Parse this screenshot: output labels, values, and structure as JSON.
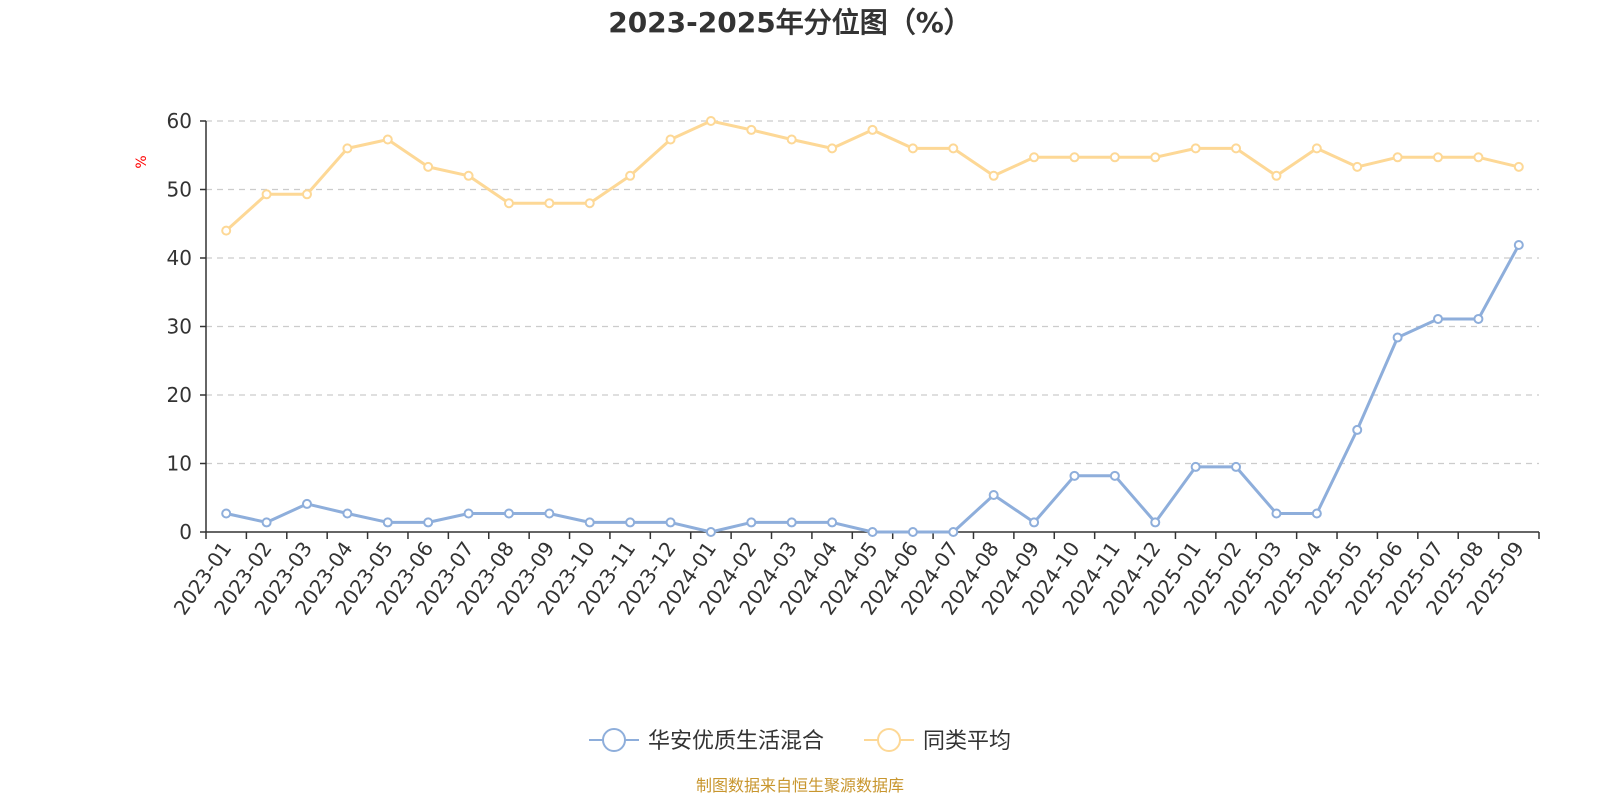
{
  "chart_data": {
    "type": "line",
    "title": "2023-2025年分位图（%）",
    "y_unit": "%",
    "ylim": [
      0,
      60
    ],
    "y_ticks": [
      0,
      10,
      20,
      30,
      40,
      50,
      60
    ],
    "grid": "horizontal dashed",
    "legend_position": "bottom",
    "categories": [
      "2023-01",
      "2023-02",
      "2023-03",
      "2023-04",
      "2023-05",
      "2023-06",
      "2023-07",
      "2023-08",
      "2023-09",
      "2023-10",
      "2023-11",
      "2023-12",
      "2024-01",
      "2024-02",
      "2024-03",
      "2024-04",
      "2024-05",
      "2024-06",
      "2024-07",
      "2024-08",
      "2024-09",
      "2024-10",
      "2024-11",
      "2024-12",
      "2025-01",
      "2025-02",
      "2025-03",
      "2025-04",
      "2025-05",
      "2025-06",
      "2025-07",
      "2025-08",
      "2025-09"
    ],
    "series": [
      {
        "name": "华安优质生活混合",
        "color": "#8eaedb",
        "values": [
          2.7,
          1.4,
          4.1,
          2.7,
          1.4,
          1.4,
          2.7,
          2.7,
          2.7,
          1.4,
          1.4,
          1.4,
          0,
          1.4,
          1.4,
          1.4,
          0,
          0,
          0,
          5.4,
          1.4,
          8.2,
          8.2,
          1.4,
          9.5,
          9.5,
          2.7,
          2.7,
          14.9,
          28.4,
          31.1,
          31.1,
          41.9
        ]
      },
      {
        "name": "同类平均",
        "color": "#fdd896",
        "values": [
          44,
          49.3,
          49.3,
          56,
          57.3,
          53.3,
          52,
          48,
          48,
          48,
          52,
          57.3,
          60,
          58.7,
          57.3,
          56,
          58.7,
          56,
          56,
          52,
          54.7,
          54.7,
          54.7,
          54.7,
          56,
          56,
          52,
          56,
          53.3,
          54.7,
          54.7,
          54.7,
          53.3
        ]
      }
    ]
  },
  "footer": {
    "source": "制图数据来自恒生聚源数据库"
  }
}
